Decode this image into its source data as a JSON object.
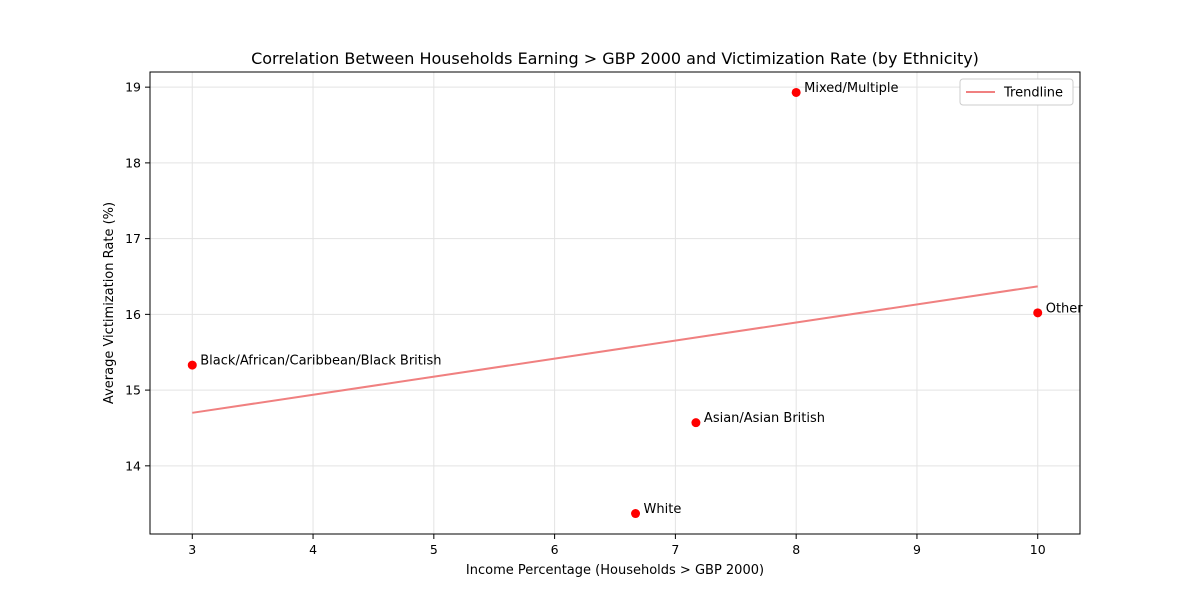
{
  "chart_data": {
    "type": "scatter",
    "title": "Correlation Between Households Earning > GBP 2000 and Victimization Rate (by Ethnicity)",
    "xlabel": "Income Percentage (Households > GBP 2000)",
    "ylabel": "Average Victimization Rate (%)",
    "xlim": [
      2.65,
      10.35
    ],
    "ylim": [
      13.1,
      19.2
    ],
    "x_ticks": [
      3,
      4,
      5,
      6,
      7,
      8,
      9,
      10
    ],
    "y_ticks": [
      14,
      15,
      16,
      17,
      18,
      19
    ],
    "grid": true,
    "legend_position": "top-right",
    "point_color": "#ff0000",
    "trend_color": "#f08080",
    "points": [
      {
        "label": "Black/African/Caribbean/Black British",
        "x": 3.0,
        "y": 15.33
      },
      {
        "label": "White",
        "x": 6.67,
        "y": 13.37
      },
      {
        "label": "Asian/Asian British",
        "x": 7.17,
        "y": 14.57
      },
      {
        "label": "Mixed/Multiple",
        "x": 8.0,
        "y": 18.93
      },
      {
        "label": "Other",
        "x": 10.0,
        "y": 16.02
      }
    ],
    "trendline": {
      "name": "Trendline",
      "x": [
        3.0,
        10.0
      ],
      "y": [
        14.7,
        16.37
      ]
    }
  }
}
